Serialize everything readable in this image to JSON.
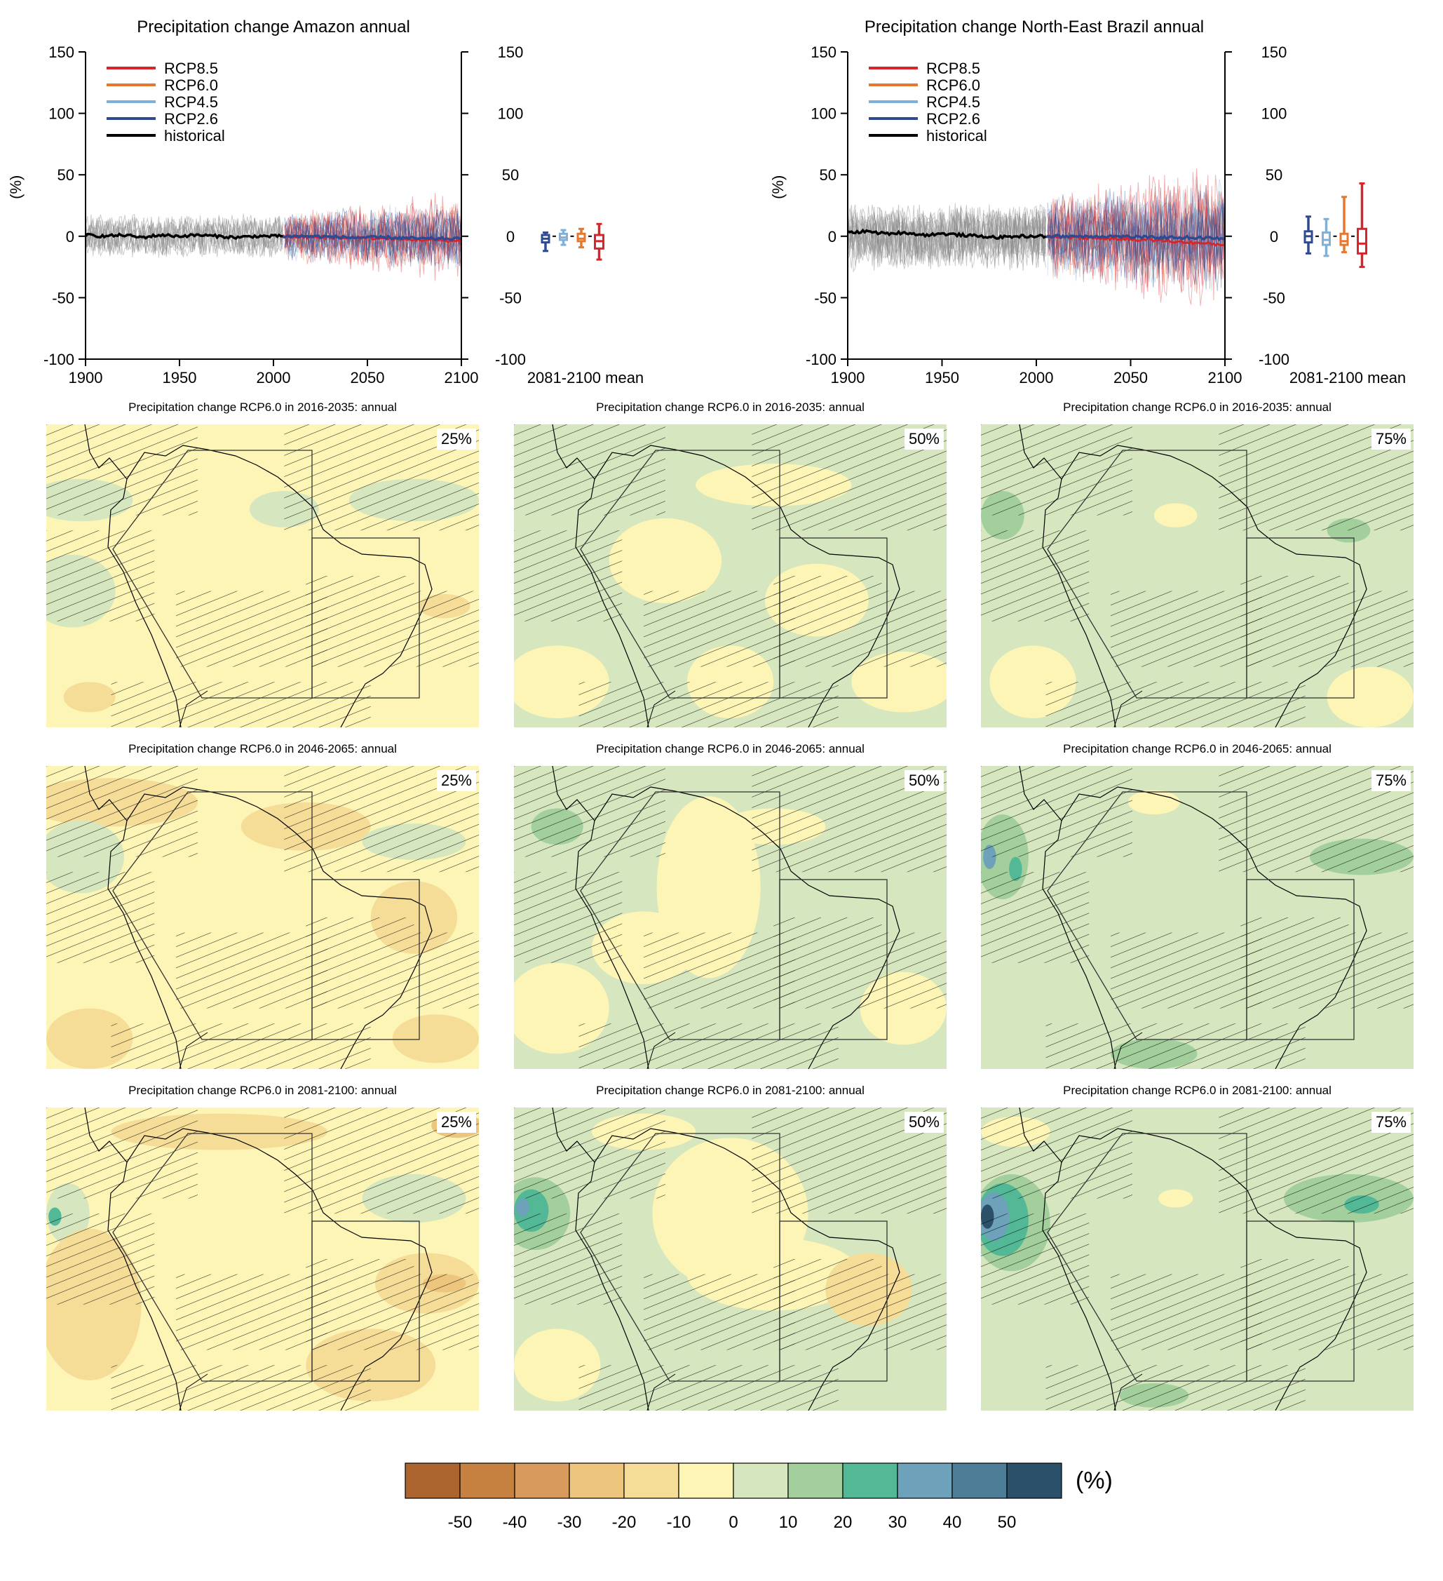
{
  "colors": {
    "rcp85": "#d7262b",
    "rcp60": "#e8772e",
    "rcp45": "#7fb0d8",
    "rcp26": "#2f4a92",
    "historical": "#000000",
    "spread_hist": "#8c8c8c"
  },
  "chart_data": [
    {
      "type": "line",
      "title": "Precipitation change Amazon annual",
      "ylabel": "(%)",
      "xlim": [
        1900,
        2100
      ],
      "ylim": [
        -100,
        150
      ],
      "x_ticks": [
        1900,
        1950,
        2000,
        2050,
        2100
      ],
      "y_ticks": [
        150,
        100,
        50,
        0,
        -50,
        -100
      ],
      "legend": [
        "RCP8.5",
        "RCP6.0",
        "RCP4.5",
        "RCP2.6",
        "historical"
      ],
      "legend_position": "top-left",
      "boxplot_label": "2081-2100 mean",
      "boxplots": [
        {
          "name": "RCP2.6",
          "min": -12,
          "q1": -5,
          "median": -2,
          "q3": 1,
          "max": 3
        },
        {
          "name": "RCP4.5",
          "min": -7,
          "q1": -3,
          "median": -1,
          "q3": 2,
          "max": 5
        },
        {
          "name": "RCP6.0",
          "min": -9,
          "q1": -4,
          "median": -2,
          "q3": 2,
          "max": 6
        },
        {
          "name": "RCP8.5",
          "min": -19,
          "q1": -10,
          "median": -4,
          "q3": 1,
          "max": 10
        }
      ],
      "series_mean": {
        "historical": {
          "x": [
            1900,
            1910,
            1920,
            1930,
            1940,
            1950,
            1960,
            1970,
            1980,
            1990,
            2005
          ],
          "y": [
            1,
            0,
            1,
            -1,
            1,
            0,
            1,
            0,
            -1,
            0,
            0
          ]
        },
        "RCP2.6": {
          "x": [
            2005,
            2020,
            2040,
            2060,
            2080,
            2100
          ],
          "y": [
            0,
            0,
            -1,
            -1,
            -2,
            -2
          ]
        },
        "RCP8.5": {
          "x": [
            2005,
            2020,
            2040,
            2060,
            2080,
            2100
          ],
          "y": [
            0,
            -1,
            -1,
            -2,
            -3,
            -4
          ]
        }
      }
    },
    {
      "type": "line",
      "title": "Precipitation change North-East Brazil annual",
      "ylabel": "(%)",
      "xlim": [
        1900,
        2100
      ],
      "ylim": [
        -100,
        150
      ],
      "x_ticks": [
        1900,
        1950,
        2000,
        2050,
        2100
      ],
      "y_ticks": [
        150,
        100,
        50,
        0,
        -50,
        -100
      ],
      "legend": [
        "RCP8.5",
        "RCP6.0",
        "RCP4.5",
        "RCP2.6",
        "historical"
      ],
      "legend_position": "top-left",
      "boxplot_label": "2081-2100 mean",
      "boxplots": [
        {
          "name": "RCP2.6",
          "min": -14,
          "q1": -5,
          "median": 0,
          "q3": 4,
          "max": 16
        },
        {
          "name": "RCP4.5",
          "min": -16,
          "q1": -7,
          "median": -3,
          "q3": 3,
          "max": 14
        },
        {
          "name": "RCP6.0",
          "min": -13,
          "q1": -7,
          "median": -4,
          "q3": 2,
          "max": 32
        },
        {
          "name": "RCP8.5",
          "min": -25,
          "q1": -14,
          "median": -6,
          "q3": 6,
          "max": 43
        }
      ],
      "series_mean": {
        "historical": {
          "x": [
            1900,
            1910,
            1920,
            1930,
            1940,
            1950,
            1960,
            1970,
            1980,
            1990,
            2005
          ],
          "y": [
            3,
            4,
            2,
            3,
            1,
            2,
            1,
            0,
            -1,
            0,
            0
          ]
        },
        "RCP2.6": {
          "x": [
            2005,
            2020,
            2040,
            2060,
            2080,
            2100
          ],
          "y": [
            0,
            0,
            0,
            -1,
            -1,
            -2
          ]
        },
        "RCP8.5": {
          "x": [
            2005,
            2020,
            2040,
            2060,
            2080,
            2100
          ],
          "y": [
            0,
            -1,
            -2,
            -3,
            -5,
            -7
          ]
        }
      }
    },
    {
      "type": "heatmap",
      "maps": [
        {
          "title": "Precipitation change RCP6.0 in 2016-2035: annual",
          "percentile": "25%"
        },
        {
          "title": "Precipitation change RCP6.0 in 2016-2035: annual",
          "percentile": "50%"
        },
        {
          "title": "Precipitation change RCP6.0 in 2016-2035: annual",
          "percentile": "75%"
        },
        {
          "title": "Precipitation change RCP6.0 in 2046-2065: annual",
          "percentile": "25%"
        },
        {
          "title": "Precipitation change RCP6.0 in 2046-2065: annual",
          "percentile": "50%"
        },
        {
          "title": "Precipitation change RCP6.0 in 2046-2065: annual",
          "percentile": "75%"
        },
        {
          "title": "Precipitation change RCP6.0 in 2081-2100: annual",
          "percentile": "25%"
        },
        {
          "title": "Precipitation change RCP6.0 in 2081-2100: annual",
          "percentile": "50%"
        },
        {
          "title": "Precipitation change RCP6.0 in 2081-2100: annual",
          "percentile": "75%"
        }
      ],
      "colorbar": {
        "unit": "(%)",
        "ticks": [
          "-50",
          "-40",
          "-30",
          "-20",
          "-10",
          "0",
          "10",
          "20",
          "30",
          "40",
          "50"
        ],
        "colors": [
          "#ad6530",
          "#c68140",
          "#d89a5c",
          "#eec57c",
          "#f5dd98",
          "#fdf5b6",
          "#d6e6bf",
          "#a2cf9c",
          "#52b895",
          "#6ea2ba",
          "#4d7d97",
          "#2b5069"
        ]
      }
    }
  ]
}
